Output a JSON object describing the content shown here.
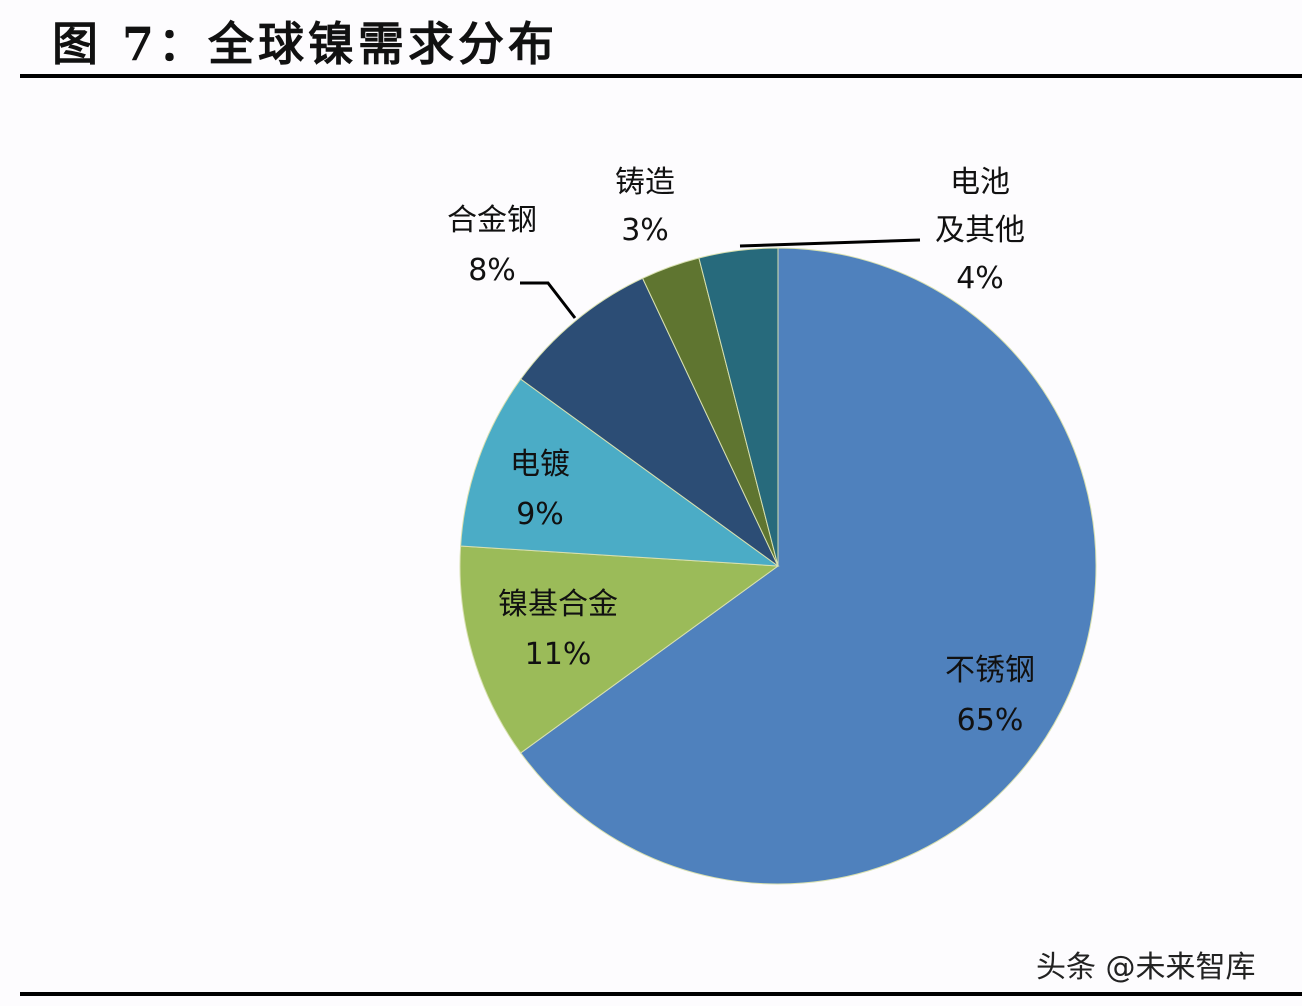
{
  "header": {
    "title": "图 7：全球镍需求分布"
  },
  "watermark": "头条 @未来智库",
  "chart_data": {
    "type": "pie",
    "title": "图 7：全球镍需求分布",
    "start_angle": "12 o'clock",
    "direction": "clockwise",
    "slices": [
      {
        "label": "不锈钢",
        "value": 65,
        "display": "65%",
        "color": "#4f81bd"
      },
      {
        "label": "镍基合金",
        "value": 11,
        "display": "11%",
        "color": "#9bbb59"
      },
      {
        "label": "电镀",
        "value": 9,
        "display": "9%",
        "color": "#4bacc6"
      },
      {
        "label": "合金钢",
        "value": 8,
        "display": "8%",
        "color": "#2c4d75"
      },
      {
        "label": "铸造",
        "value": 3,
        "display": "3%",
        "color": "#5f7530"
      },
      {
        "label": "电池及其他",
        "value": 4,
        "display": "4%",
        "color": "#276a7c"
      }
    ],
    "categories": [
      "不锈钢",
      "镍基合金",
      "电镀",
      "合金钢",
      "铸造",
      "电池及其他"
    ],
    "values": [
      65,
      11,
      9,
      8,
      3,
      4
    ],
    "legend": "none (data labels on/next to slices)"
  },
  "labels": {
    "stainless": {
      "name": "不锈钢",
      "pct": "65%"
    },
    "nickel_alloy": {
      "name": "镍基合金",
      "pct": "11%"
    },
    "plating": {
      "name": "电镀",
      "pct": "9%"
    },
    "alloy_steel": {
      "name": "合金钢",
      "pct": "8%"
    },
    "casting": {
      "name": "铸造",
      "pct": "3%"
    },
    "battery": {
      "line1": "电池",
      "line2": "及其他",
      "pct": "4%"
    }
  }
}
